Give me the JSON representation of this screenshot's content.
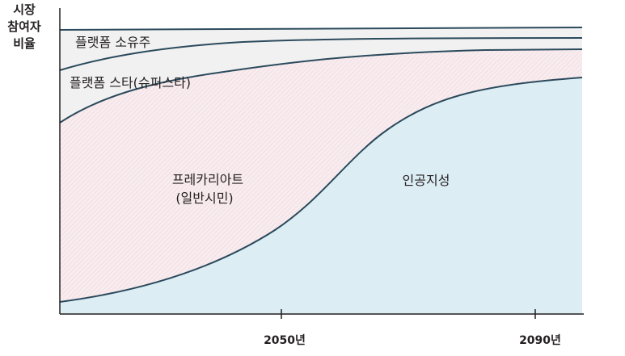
{
  "chart_data": {
    "type": "area",
    "ylabel_lines": [
      "시장",
      "참여자",
      "비율"
    ],
    "x_ticks": [
      "2050년",
      "2090년"
    ],
    "layers": [
      {
        "name": "플랫폼 소유주",
        "fill": "#f1f1f1"
      },
      {
        "name": "플랫폼 스타(슈퍼스타)",
        "fill": "#f1f1f1"
      },
      {
        "name": "프레카리아트",
        "sublabel": "(일반시민)",
        "fill": "#f8ecef"
      },
      {
        "name": "인공지성",
        "fill": "#dcedf4"
      }
    ],
    "colors": {
      "line": "#2b4a5c",
      "axis": "#231f20"
    }
  }
}
